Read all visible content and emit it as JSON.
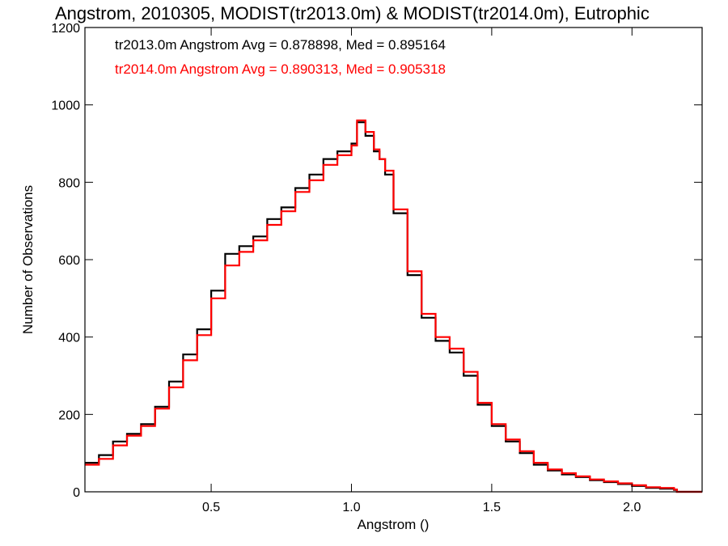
{
  "chart_data": {
    "type": "line",
    "title": "Angstrom, 2010305, MODIST(tr2013.0m) & MODIST(tr2014.0m), Eutrophic",
    "xlabel": "Angstrom ()",
    "ylabel": "Number of Observations",
    "xlim": [
      0.05,
      2.25
    ],
    "ylim": [
      0,
      1200
    ],
    "xticks": [
      0.5,
      1.0,
      1.5,
      2.0
    ],
    "xtick_labels": [
      "0.5",
      "1.0",
      "1.5",
      "2.0"
    ],
    "yticks": [
      0,
      200,
      400,
      600,
      800,
      1000,
      1200
    ],
    "ytick_labels": [
      "0",
      "200",
      "400",
      "600",
      "800",
      "1000",
      "1200"
    ],
    "grid": false,
    "series": [
      {
        "name": "tr2013.0m",
        "color": "#000000",
        "step": true,
        "annotation": "tr2013.0m Angstrom Avg = 0.878898, Med = 0.895164",
        "x": [
          0.05,
          0.1,
          0.15,
          0.2,
          0.25,
          0.3,
          0.35,
          0.4,
          0.45,
          0.5,
          0.55,
          0.6,
          0.65,
          0.7,
          0.75,
          0.8,
          0.85,
          0.9,
          0.95,
          1.0,
          1.02,
          1.05,
          1.08,
          1.1,
          1.12,
          1.15,
          1.2,
          1.25,
          1.3,
          1.35,
          1.4,
          1.45,
          1.5,
          1.55,
          1.6,
          1.65,
          1.7,
          1.75,
          1.8,
          1.85,
          1.9,
          1.95,
          2.0,
          2.05,
          2.1,
          2.15,
          2.16,
          2.25
        ],
        "y": [
          75,
          95,
          130,
          150,
          175,
          220,
          285,
          355,
          420,
          520,
          615,
          635,
          660,
          705,
          735,
          785,
          820,
          860,
          880,
          900,
          955,
          920,
          880,
          860,
          820,
          720,
          560,
          450,
          390,
          360,
          300,
          225,
          170,
          130,
          100,
          70,
          55,
          45,
          38,
          30,
          25,
          20,
          15,
          10,
          8,
          5,
          0,
          0
        ]
      },
      {
        "name": "tr2014.0m",
        "color": "#ff0000",
        "step": true,
        "annotation": "tr2014.0m Angstrom Avg = 0.890313, Med = 0.905318",
        "x": [
          0.05,
          0.1,
          0.15,
          0.2,
          0.25,
          0.3,
          0.35,
          0.4,
          0.45,
          0.5,
          0.55,
          0.6,
          0.65,
          0.7,
          0.75,
          0.8,
          0.85,
          0.9,
          0.95,
          1.0,
          1.02,
          1.05,
          1.08,
          1.1,
          1.12,
          1.15,
          1.2,
          1.25,
          1.3,
          1.35,
          1.4,
          1.45,
          1.5,
          1.55,
          1.6,
          1.65,
          1.7,
          1.75,
          1.8,
          1.85,
          1.9,
          1.95,
          2.0,
          2.05,
          2.1,
          2.15,
          2.16,
          2.25
        ],
        "y": [
          70,
          85,
          120,
          145,
          170,
          215,
          270,
          340,
          405,
          500,
          585,
          620,
          650,
          690,
          725,
          775,
          805,
          845,
          870,
          895,
          960,
          930,
          885,
          860,
          830,
          730,
          570,
          460,
          400,
          370,
          310,
          230,
          175,
          135,
          105,
          75,
          58,
          48,
          40,
          32,
          27,
          22,
          17,
          12,
          10,
          6,
          0,
          0
        ]
      }
    ]
  }
}
